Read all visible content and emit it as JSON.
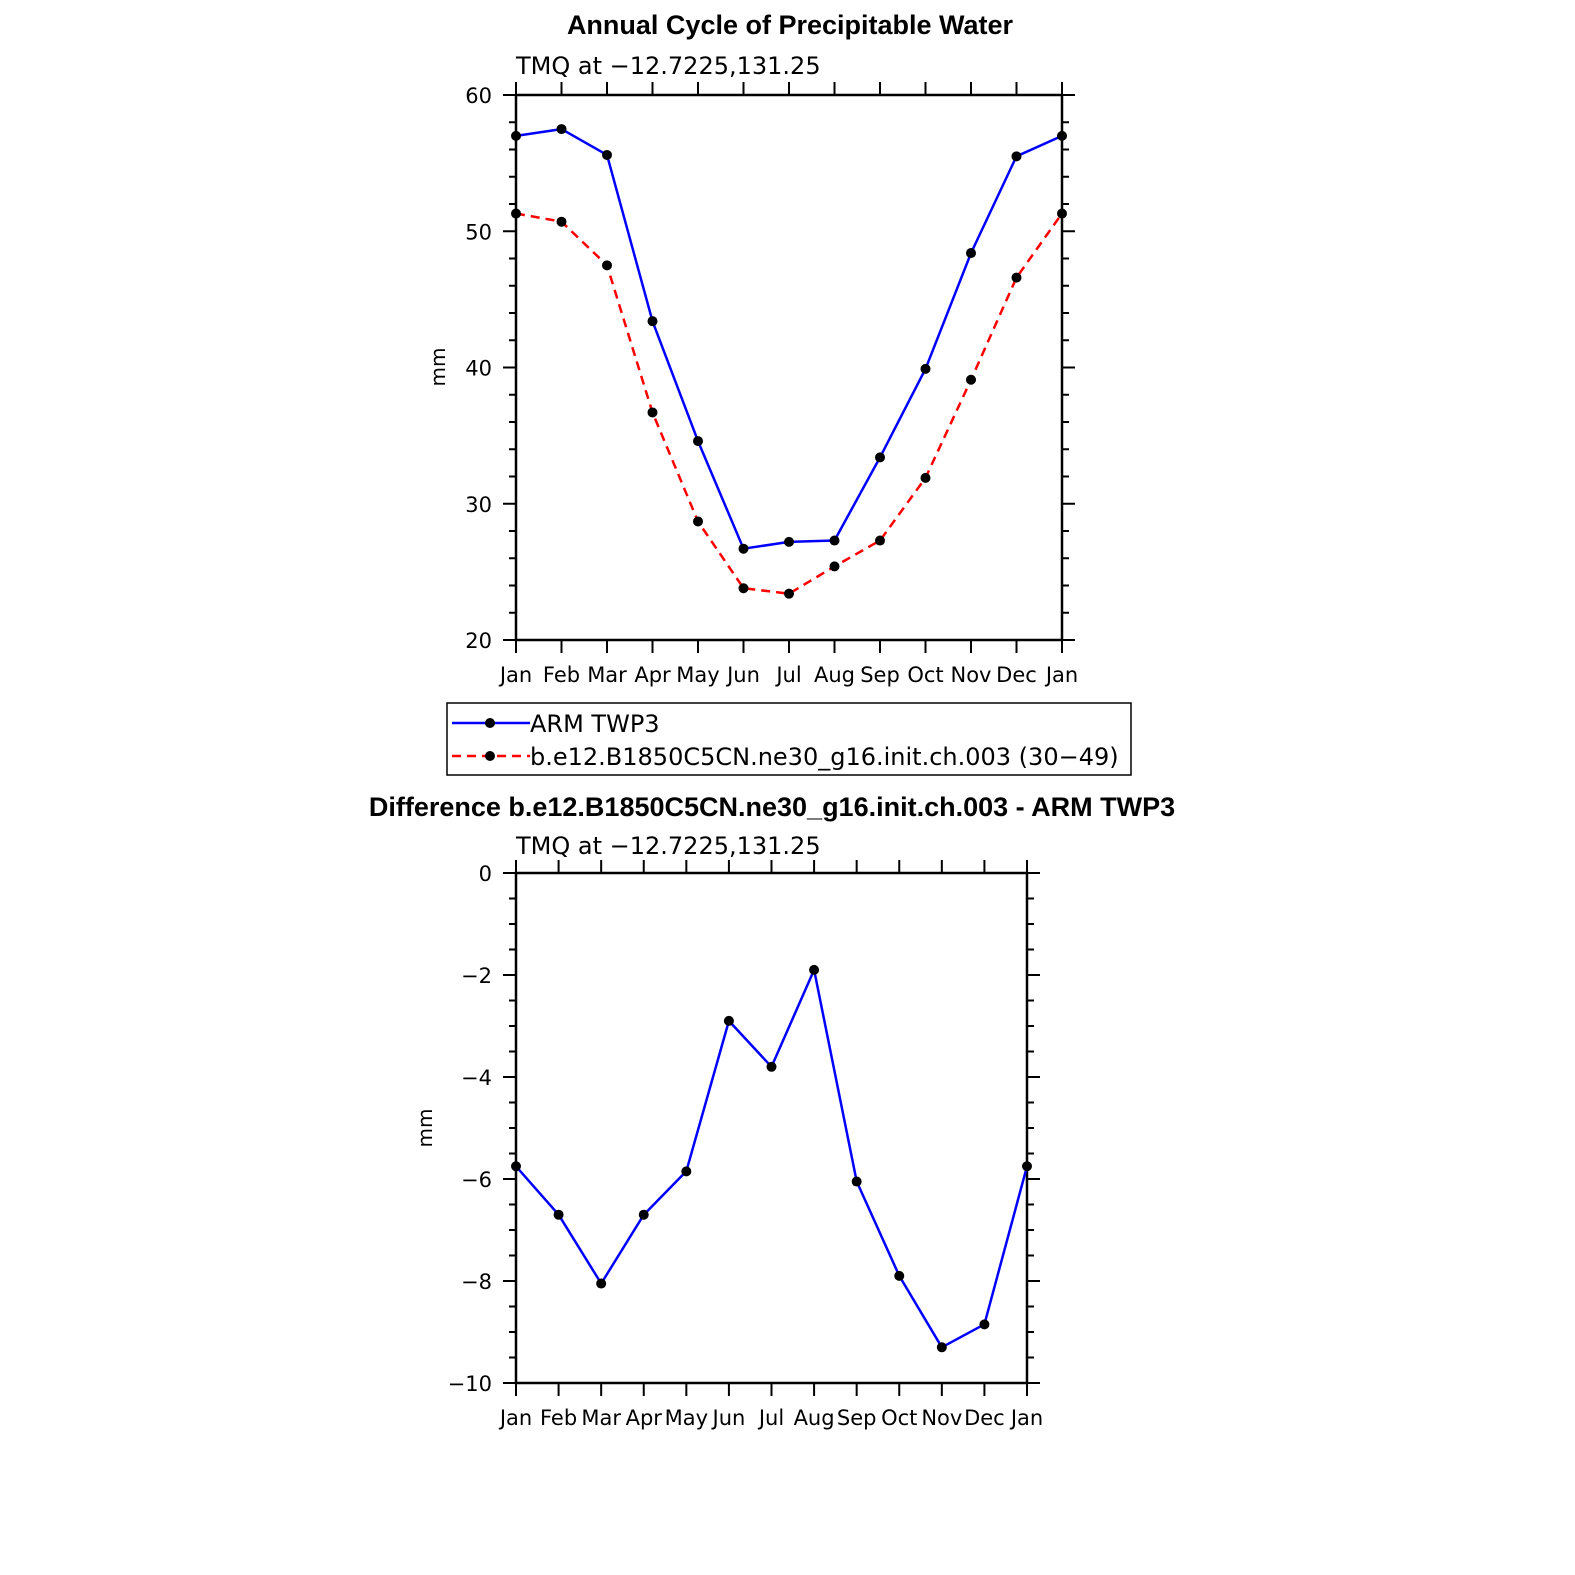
{
  "chart_data": [
    {
      "type": "line",
      "title": "Annual Cycle of Precipitable Water",
      "subtitle": "TMQ at −12.7225,131.25",
      "ylabel": "mm",
      "ylim": [
        20,
        60
      ],
      "yticks": [
        "20",
        "30",
        "40",
        "50",
        "60"
      ],
      "categories": [
        "Jan",
        "Feb",
        "Mar",
        "Apr",
        "May",
        "Jun",
        "Jul",
        "Aug",
        "Sep",
        "Oct",
        "Nov",
        "Dec",
        "Jan"
      ],
      "series": [
        {
          "name": "ARM TWP3",
          "color": "#0000ff",
          "dash": "solid",
          "values": [
            57.0,
            57.5,
            55.6,
            43.4,
            34.6,
            26.7,
            27.2,
            27.3,
            33.4,
            39.9,
            48.4,
            55.5,
            57.0
          ]
        },
        {
          "name": "b.e12.B1850C5CN.ne30_g16.init.ch.003 (30−49)",
          "color": "#ff0000",
          "dash": "dashed",
          "values": [
            51.3,
            50.7,
            47.5,
            36.7,
            28.7,
            23.8,
            23.4,
            25.4,
            27.3,
            31.9,
            39.1,
            46.6,
            51.3
          ]
        }
      ],
      "legend": "below"
    },
    {
      "type": "line",
      "title": "Difference b.e12.B1850C5CN.ne30_g16.init.ch.003 - ARM TWP3",
      "subtitle": "TMQ at −12.7225,131.25",
      "ylabel": "mm",
      "ylim": [
        -10,
        0
      ],
      "yticks": [
        "−10",
        "−8",
        "−6",
        "−4",
        "−2",
        "0"
      ],
      "categories": [
        "Jan",
        "Feb",
        "Mar",
        "Apr",
        "May",
        "Jun",
        "Jul",
        "Aug",
        "Sep",
        "Oct",
        "Nov",
        "Dec",
        "Jan"
      ],
      "series": [
        {
          "color": "#0000ff",
          "dash": "solid",
          "values": [
            -5.75,
            -6.7,
            -8.05,
            -6.7,
            -5.85,
            -2.9,
            -3.8,
            -1.9,
            -6.05,
            -7.9,
            -9.3,
            -8.85,
            -5.75
          ]
        }
      ]
    }
  ]
}
